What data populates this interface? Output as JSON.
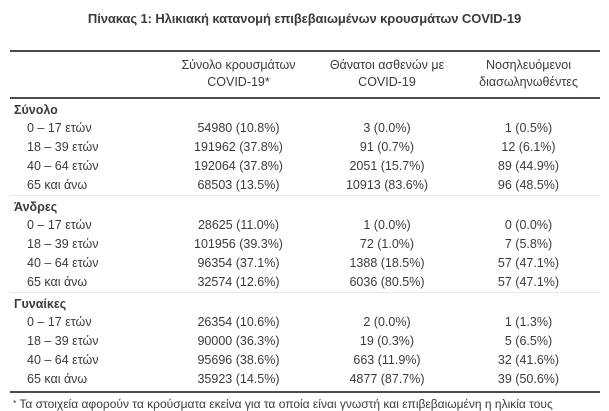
{
  "title": "Πίνακας 1: Ηλικιακή κατανομή επιβεβαιωμένων κρουσμάτων COVID-19",
  "table": {
    "columns": [
      {
        "line1": "Σύνολο κρουσμάτων",
        "line2": "COVID-19*"
      },
      {
        "line1": "Θάνατοι ασθενών με",
        "line2": "COVID-19"
      },
      {
        "line1": "Νοσηλευόμενοι",
        "line2": "διασωληνωθέντες"
      }
    ],
    "sections": [
      {
        "name": "Σύνολο",
        "rows": [
          {
            "age_group": "0 – 17 ετών",
            "cases": "54980 (10.8%)",
            "deaths": "3 (0.0%)",
            "intubated": "1 (0.5%)"
          },
          {
            "age_group": "18 – 39 ετών",
            "cases": "191962 (37.8%)",
            "deaths": "91 (0.7%)",
            "intubated": "12 (6.1%)"
          },
          {
            "age_group": "40 – 64 ετών",
            "cases": "192064 (37.8%)",
            "deaths": "2051 (15.7%)",
            "intubated": "89 (44.9%)"
          },
          {
            "age_group": "65 και άνω",
            "cases": "68503 (13.5%)",
            "deaths": "10913 (83.6%)",
            "intubated": "96 (48.5%)"
          }
        ]
      },
      {
        "name": "Άνδρες",
        "rows": [
          {
            "age_group": "0 – 17 ετών",
            "cases": "28625 (11.0%)",
            "deaths": "1 (0.0%)",
            "intubated": "0 (0.0%)"
          },
          {
            "age_group": "18 – 39 ετών",
            "cases": "101956 (39.3%)",
            "deaths": "72 (1.0%)",
            "intubated": "7 (5.8%)"
          },
          {
            "age_group": "40 – 64 ετών",
            "cases": "96354 (37.1%)",
            "deaths": "1388 (18.5%)",
            "intubated": "57 (47.1%)"
          },
          {
            "age_group": "65 και άνω",
            "cases": "32574 (12.6%)",
            "deaths": "6036 (80.5%)",
            "intubated": "57 (47.1%)"
          }
        ]
      },
      {
        "name": "Γυναίκες",
        "rows": [
          {
            "age_group": "0 – 17 ετών",
            "cases": "26354 (10.6%)",
            "deaths": "2 (0.0%)",
            "intubated": "1 (1.3%)"
          },
          {
            "age_group": "18 – 39 ετών",
            "cases": "90000 (36.3%)",
            "deaths": "19 (0.3%)",
            "intubated": "5 (6.5%)"
          },
          {
            "age_group": "40 – 64 ετών",
            "cases": "95696 (38.6%)",
            "deaths": "663 (11.9%)",
            "intubated": "32 (41.6%)"
          },
          {
            "age_group": "65 και άνω",
            "cases": "35923 (14.5%)",
            "deaths": "4877 (87.7%)",
            "intubated": "39 (50.6%)"
          }
        ]
      }
    ]
  },
  "footnote": {
    "marker": "*",
    "text": "Τα στοιχεία αφορούν τα κρούσματα εκείνα για τα οποία είναι γνωστή και επιβεβαιωμένη η ηλικία τους"
  },
  "colors": {
    "text": "#3b3b3d",
    "border_dark": "#4b4b4d",
    "border_light": "#e9e9e9",
    "background": "#ffffff"
  }
}
